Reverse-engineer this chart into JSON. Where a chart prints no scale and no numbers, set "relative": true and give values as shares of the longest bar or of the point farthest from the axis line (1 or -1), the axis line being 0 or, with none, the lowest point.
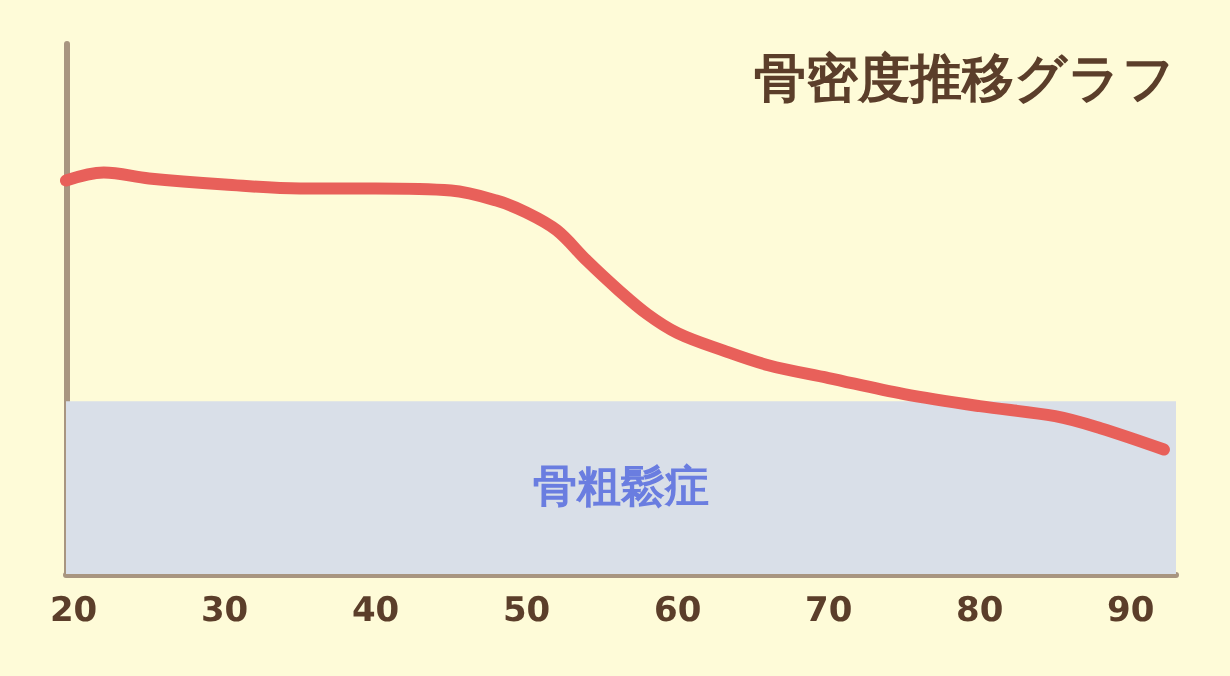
{
  "chart_data": {
    "type": "line",
    "title": "骨密度推移グラフ",
    "relative": true,
    "x": [
      19.5,
      22,
      25,
      30,
      35,
      40,
      45,
      48,
      50,
      52,
      54,
      56,
      58,
      60,
      63,
      66,
      70,
      75,
      80,
      85,
      88,
      92.2
    ],
    "series": [
      {
        "color": "#e8605a",
        "values": [
          0.98,
          1.0,
          0.985,
          0.97,
          0.96,
          0.96,
          0.955,
          0.93,
          0.9,
          0.856,
          0.78,
          0.71,
          0.647,
          0.6,
          0.557,
          0.52,
          0.488,
          0.448,
          0.418,
          0.393,
          0.363,
          0.31
        ]
      }
    ],
    "xlim": [
      19.5,
      93
    ],
    "xticks": [
      20,
      30,
      40,
      50,
      60,
      70,
      80,
      90
    ],
    "bands": [
      {
        "axis": "y",
        "from": 0,
        "to": 0.43,
        "label": "骨粗鬆症",
        "color": "#d9dfe8"
      }
    ],
    "grid": false,
    "marker": "none",
    "line_style": "solid"
  }
}
